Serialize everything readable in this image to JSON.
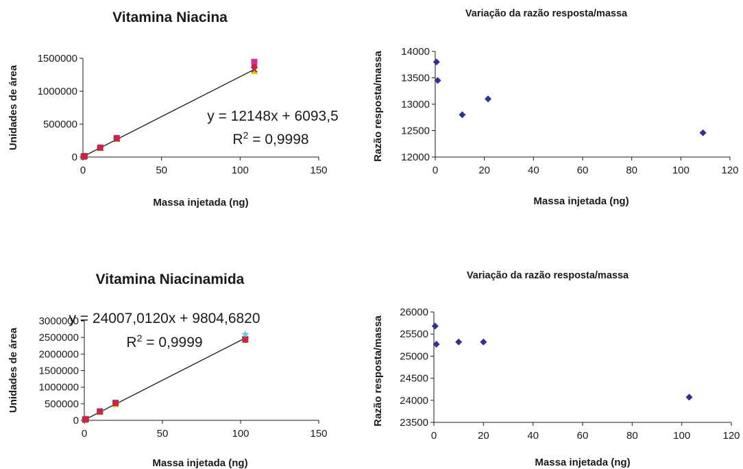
{
  "chart_data": [
    {
      "type": "scatter",
      "title": "Vitamina Niacina",
      "xlabel": "Massa injetada (ng)",
      "ylabel": "Unidades de área",
      "xlim": [
        0,
        150
      ],
      "ylim": [
        0,
        1500000
      ],
      "xticks": [
        "0",
        "50",
        "100",
        "150"
      ],
      "yticks": [
        "0",
        "500000",
        "1000000",
        "1500000"
      ],
      "series": [
        {
          "marker": "diamond",
          "color": "#2e3192",
          "x": [
            0.5,
            1.0,
            11,
            21.5,
            109
          ],
          "y": [
            6900,
            13500,
            140800,
            281500,
            1358000
          ]
        },
        {
          "marker": "square",
          "color": "#cc3399",
          "x": [
            0.5,
            1.0,
            11,
            21.5,
            109
          ],
          "y": [
            7200,
            14000,
            143000,
            289000,
            1445000
          ]
        },
        {
          "marker": "triangle",
          "color": "#f2c400",
          "x": [
            0.5,
            1.0,
            11,
            21.5,
            109
          ],
          "y": [
            6500,
            12800,
            135000,
            272000,
            1300000
          ]
        },
        {
          "marker": "x",
          "color": "#6b4c2a",
          "x": [
            0.5,
            1.0,
            11,
            21.5,
            109
          ],
          "y": [
            6800,
            13300,
            138000,
            276000,
            1330000
          ]
        },
        {
          "marker": "circle",
          "color": "#cc2244",
          "x": [
            0.5,
            1.0,
            11,
            21.5,
            109
          ],
          "y": [
            7000,
            13600,
            141000,
            283000,
            1370000
          ]
        }
      ],
      "trendline": {
        "slope": 12148,
        "intercept": 6093.5,
        "x": [
          0,
          109
        ]
      },
      "equation": "y = 12148x + 6093,5",
      "r2_label": "R",
      "r2_sup": "2",
      "r2_value": " = 0,9998"
    },
    {
      "type": "scatter",
      "title": "Variação da razão resposta/massa",
      "xlabel": "Massa injetada (ng)",
      "ylabel": "Razão resposta/massa",
      "xlim": [
        0,
        120
      ],
      "ylim": [
        12000,
        14000
      ],
      "xticks": [
        "0",
        "20",
        "40",
        "60",
        "80",
        "100",
        "120"
      ],
      "yticks": [
        "12000",
        "12500",
        "13000",
        "13500",
        "14000"
      ],
      "series": [
        {
          "marker": "diamond",
          "color": "#2e3192",
          "x": [
            0.5,
            1.0,
            11,
            21.5,
            109
          ],
          "y": [
            13800,
            13450,
            12800,
            13100,
            12460
          ]
        }
      ]
    },
    {
      "type": "scatter",
      "title": "Vitamina Niacinamida",
      "xlabel": "Massa injetada (ng)",
      "ylabel": "Unidades de área",
      "xlim": [
        0,
        150
      ],
      "ylim": [
        0,
        3000000
      ],
      "xticks": [
        "0",
        "50",
        "100",
        "150"
      ],
      "yticks": [
        "0",
        "500000",
        "1000000",
        "1500000",
        "2000000",
        "2500000",
        "3000000"
      ],
      "series": [
        {
          "marker": "diamond",
          "color": "#2e3192",
          "x": [
            0.5,
            1.0,
            10,
            20,
            103
          ],
          "y": [
            22000,
            35000,
            265000,
            520000,
            2490000
          ]
        },
        {
          "marker": "square",
          "color": "#cc3399",
          "x": [
            0.5,
            1.0,
            10,
            20,
            103
          ],
          "y": [
            23000,
            36000,
            270000,
            530000,
            2450000
          ]
        },
        {
          "marker": "triangle",
          "color": "#f2c400",
          "x": [
            0.5,
            1.0,
            10,
            20,
            103
          ],
          "y": [
            20000,
            32000,
            250000,
            480000,
            2420000
          ]
        },
        {
          "marker": "star",
          "color": "#6fc4e8",
          "x": [
            0.5,
            1.0,
            10,
            20,
            103
          ],
          "y": [
            22500,
            35500,
            268000,
            528000,
            2590000
          ]
        },
        {
          "marker": "x",
          "color": "#6b4c2a",
          "x": [
            0.5,
            1.0,
            10,
            20,
            103
          ],
          "y": [
            21500,
            34000,
            262000,
            515000,
            2440000
          ]
        },
        {
          "marker": "circle",
          "color": "#cc2244",
          "x": [
            0.5,
            1.0,
            10,
            20,
            103
          ],
          "y": [
            22000,
            34500,
            263000,
            518000,
            2430000
          ]
        }
      ],
      "trendline": {
        "slope": 24007.012,
        "intercept": 9804.682,
        "x": [
          0,
          103
        ]
      },
      "equation": "y = 24007,0120x + 9804,6820",
      "r2_label": "R",
      "r2_sup": "2",
      "r2_value": " = 0,9999"
    },
    {
      "type": "scatter",
      "title": "Variação da razão resposta/massa",
      "xlabel": "Massa injetada (ng)",
      "ylabel": "Razão resposta/massa",
      "xlim": [
        0,
        120
      ],
      "ylim": [
        23500,
        26000
      ],
      "xticks": [
        "0",
        "20",
        "40",
        "60",
        "80",
        "100",
        "120"
      ],
      "yticks": [
        "23500",
        "24000",
        "24500",
        "25000",
        "25500",
        "26000"
      ],
      "series": [
        {
          "marker": "diamond",
          "color": "#2e3192",
          "x": [
            0.5,
            1.0,
            10,
            20,
            103
          ],
          "y": [
            25680,
            25270,
            25320,
            25320,
            24070
          ]
        }
      ]
    }
  ]
}
